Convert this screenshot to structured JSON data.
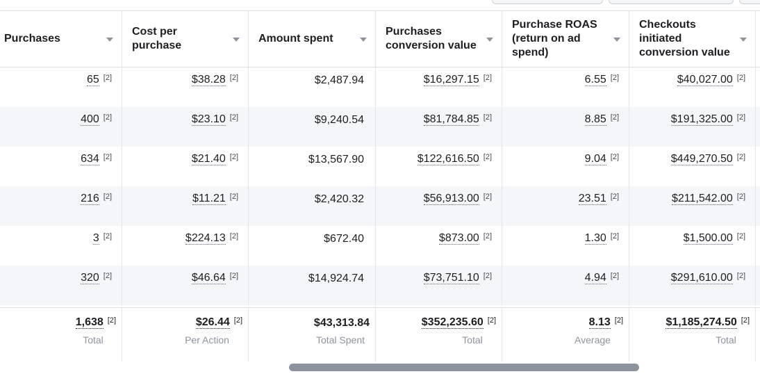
{
  "columns": [
    {
      "label": "Purchases"
    },
    {
      "label": "Cost per purchase"
    },
    {
      "label": "Amount spent"
    },
    {
      "label": "Purchases conversion value"
    },
    {
      "label": "Purchase ROAS (return on ad spend)"
    },
    {
      "label": "Checkouts initiated conversion value"
    }
  ],
  "ref_marker": "[2]",
  "rows": [
    {
      "purchases": "65",
      "cost_per_purchase": "$38.28",
      "amount_spent": "$2,487.94",
      "conversion_value": "$16,297.15",
      "roas": "6.55",
      "checkouts_value": "$40,027.00"
    },
    {
      "purchases": "400",
      "cost_per_purchase": "$23.10",
      "amount_spent": "$9,240.54",
      "conversion_value": "$81,784.85",
      "roas": "8.85",
      "checkouts_value": "$191,325.00"
    },
    {
      "purchases": "634",
      "cost_per_purchase": "$21.40",
      "amount_spent": "$13,567.90",
      "conversion_value": "$122,616.50",
      "roas": "9.04",
      "checkouts_value": "$449,270.50"
    },
    {
      "purchases": "216",
      "cost_per_purchase": "$11.21",
      "amount_spent": "$2,420.32",
      "conversion_value": "$56,913.00",
      "roas": "23.51",
      "checkouts_value": "$211,542.00"
    },
    {
      "purchases": "3",
      "cost_per_purchase": "$224.13",
      "amount_spent": "$672.40",
      "conversion_value": "$873.00",
      "roas": "1.30",
      "checkouts_value": "$1,500.00"
    },
    {
      "purchases": "320",
      "cost_per_purchase": "$46.64",
      "amount_spent": "$14,924.74",
      "conversion_value": "$73,751.10",
      "roas": "4.94",
      "checkouts_value": "$291,610.00"
    }
  ],
  "totals": {
    "purchases": {
      "value": "1,638",
      "label": "Total"
    },
    "cost_per_purchase": {
      "value": "$26.44",
      "label": "Per Action"
    },
    "amount_spent": {
      "value": "$43,313.84",
      "label": "Total Spent"
    },
    "conversion_value": {
      "value": "$352,235.60",
      "label": "Total"
    },
    "roas": {
      "value": "8.13",
      "label": "Average"
    },
    "checkouts_value": {
      "value": "$1,185,274.50",
      "label": "Total"
    }
  }
}
